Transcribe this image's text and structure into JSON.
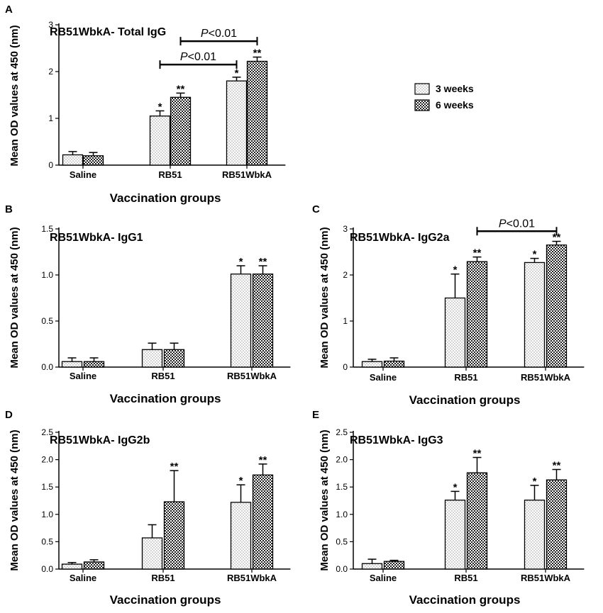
{
  "chart_data": [
    {
      "panel": "A",
      "type": "bar",
      "title": "RB51WbkA- Total IgG",
      "xlabel": "Vaccination groups",
      "ylabel": "Mean OD values at 450 (nm)",
      "categories": [
        "Saline",
        "RB51",
        "RB51WbkA"
      ],
      "ylim": [
        0,
        3
      ],
      "yticks": [
        "0",
        "1",
        "2",
        "3"
      ],
      "series": [
        {
          "name": "3 weeks",
          "values": [
            0.22,
            1.05,
            1.8
          ],
          "errors": [
            0.07,
            0.11,
            0.08
          ],
          "sig": [
            "",
            "*",
            "*"
          ]
        },
        {
          "name": "6 weeks",
          "values": [
            0.2,
            1.45,
            2.22
          ],
          "errors": [
            0.07,
            0.09,
            0.09
          ],
          "sig": [
            "",
            "**",
            "**"
          ]
        }
      ],
      "comparisons": [
        {
          "label_italic": "P",
          "label_rest": "<0.01",
          "from": [
            1,
            0
          ],
          "to": [
            2,
            0
          ],
          "y": 2.15
        },
        {
          "label_italic": "P",
          "label_rest": "<0.01",
          "from": [
            1,
            1
          ],
          "to": [
            2,
            1
          ],
          "y": 2.65
        }
      ],
      "legend": {
        "position": "right",
        "entries": [
          "3 weeks",
          "6 weeks"
        ]
      }
    },
    {
      "panel": "B",
      "type": "bar",
      "title": "RB51WbkA- IgG1",
      "xlabel": "Vaccination groups",
      "ylabel": "Mean OD values at 450 (nm)",
      "categories": [
        "Saline",
        "RB51",
        "RB51WbkA"
      ],
      "ylim": [
        0,
        1.5
      ],
      "yticks": [
        "0.0",
        "0.5",
        "1.0",
        "1.5"
      ],
      "series": [
        {
          "name": "3 weeks",
          "values": [
            0.06,
            0.19,
            1.01
          ],
          "errors": [
            0.04,
            0.07,
            0.09
          ],
          "sig": [
            "",
            "",
            "*"
          ]
        },
        {
          "name": "6 weeks",
          "values": [
            0.06,
            0.19,
            1.01
          ],
          "errors": [
            0.04,
            0.07,
            0.09
          ],
          "sig": [
            "",
            "",
            "**"
          ]
        }
      ],
      "comparisons": []
    },
    {
      "panel": "C",
      "type": "bar",
      "title": "RB51WbkA- IgG2a",
      "xlabel": "Vaccination groups",
      "ylabel": "Mean OD values at 450 (nm)",
      "categories": [
        "Saline",
        "RB51",
        "RB51WbkA"
      ],
      "ylim": [
        0,
        3
      ],
      "yticks": [
        "0",
        "1",
        "2",
        "3"
      ],
      "series": [
        {
          "name": "3 weeks",
          "values": [
            0.12,
            1.5,
            2.27
          ],
          "errors": [
            0.05,
            0.52,
            0.09
          ],
          "sig": [
            "",
            "*",
            "*"
          ]
        },
        {
          "name": "6 weeks",
          "values": [
            0.13,
            2.29,
            2.65
          ],
          "errors": [
            0.07,
            0.1,
            0.08
          ],
          "sig": [
            "",
            "**",
            "**"
          ]
        }
      ],
      "comparisons": [
        {
          "label_italic": "P",
          "label_rest": "<0.01",
          "from": [
            1,
            1
          ],
          "to": [
            2,
            1
          ],
          "y": 2.95
        }
      ]
    },
    {
      "panel": "D",
      "type": "bar",
      "title": "RB51WbkA- IgG2b",
      "xlabel": "Vaccination groups",
      "ylabel": "Mean OD values at 450 (nm)",
      "categories": [
        "Saline",
        "RB51",
        "RB51WbkA"
      ],
      "ylim": [
        0,
        2.5
      ],
      "yticks": [
        "0.0",
        "0.5",
        "1.0",
        "1.5",
        "2.0",
        "2.5"
      ],
      "series": [
        {
          "name": "3 weeks",
          "values": [
            0.09,
            0.57,
            1.22
          ],
          "errors": [
            0.03,
            0.24,
            0.32
          ],
          "sig": [
            "",
            "",
            "*"
          ]
        },
        {
          "name": "6 weeks",
          "values": [
            0.13,
            1.23,
            1.72
          ],
          "errors": [
            0.04,
            0.57,
            0.2
          ],
          "sig": [
            "",
            "**",
            "**"
          ]
        }
      ],
      "comparisons": []
    },
    {
      "panel": "E",
      "type": "bar",
      "title": "RB51WbkA- IgG3",
      "xlabel": "Vaccination groups",
      "ylabel": "Mean OD values at 450 (nm)",
      "categories": [
        "Saline",
        "RB51",
        "RB51WbkA"
      ],
      "ylim": [
        0,
        2.5
      ],
      "yticks": [
        "0.0",
        "0.5",
        "1.0",
        "1.5",
        "2.0",
        "2.5"
      ],
      "series": [
        {
          "name": "3 weeks",
          "values": [
            0.1,
            1.26,
            1.26
          ],
          "errors": [
            0.08,
            0.16,
            0.27
          ],
          "sig": [
            "",
            "*",
            "*"
          ]
        },
        {
          "name": "6 weeks",
          "values": [
            0.14,
            1.76,
            1.63
          ],
          "errors": [
            0.02,
            0.28,
            0.19
          ],
          "sig": [
            "",
            "**",
            "**"
          ]
        }
      ],
      "comparisons": []
    }
  ]
}
